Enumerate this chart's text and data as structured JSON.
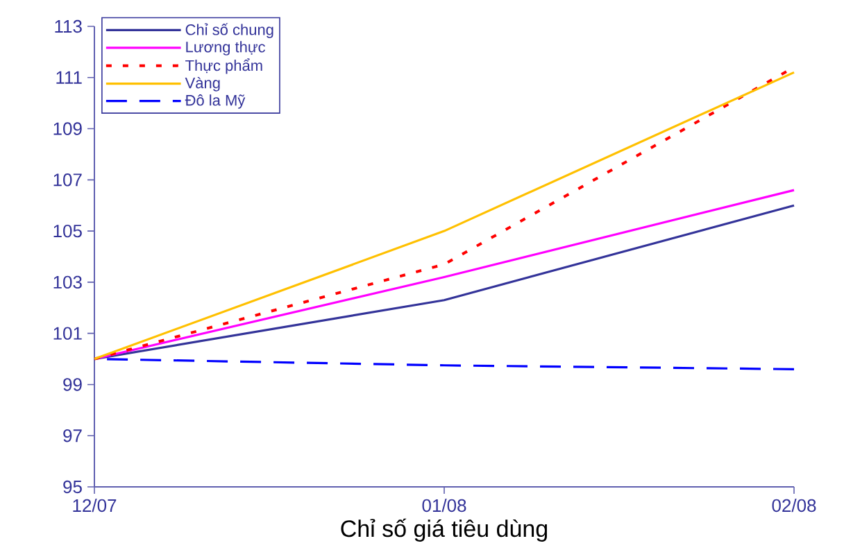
{
  "chart_data": {
    "type": "line",
    "xlabel": "Chỉ số giá tiêu dùng",
    "categories": [
      "12/07",
      "01/08",
      "02/08"
    ],
    "ylim": [
      95,
      113
    ],
    "yticks": [
      95,
      97,
      99,
      101,
      103,
      105,
      107,
      109,
      111,
      113
    ],
    "legend": "top left",
    "series": [
      {
        "name": "Chỉ số chung",
        "color": "#333399",
        "line_style": "solid",
        "values": [
          100,
          102.3,
          106.0
        ]
      },
      {
        "name": "Lương thực",
        "color": "#ff00ff",
        "line_style": "solid",
        "values": [
          100,
          103.2,
          106.6
        ]
      },
      {
        "name": "Thực phẩm",
        "color": "#ff0000",
        "line_style": "dotted",
        "values": [
          100,
          103.7,
          111.4
        ]
      },
      {
        "name": "Vàng",
        "color": "#ffc000",
        "line_style": "solid",
        "values": [
          100,
          105.0,
          111.2
        ]
      },
      {
        "name": "Đô la Mỹ",
        "color": "#0000ff",
        "line_style": "dashed",
        "values": [
          100,
          99.75,
          99.6
        ]
      }
    ]
  }
}
